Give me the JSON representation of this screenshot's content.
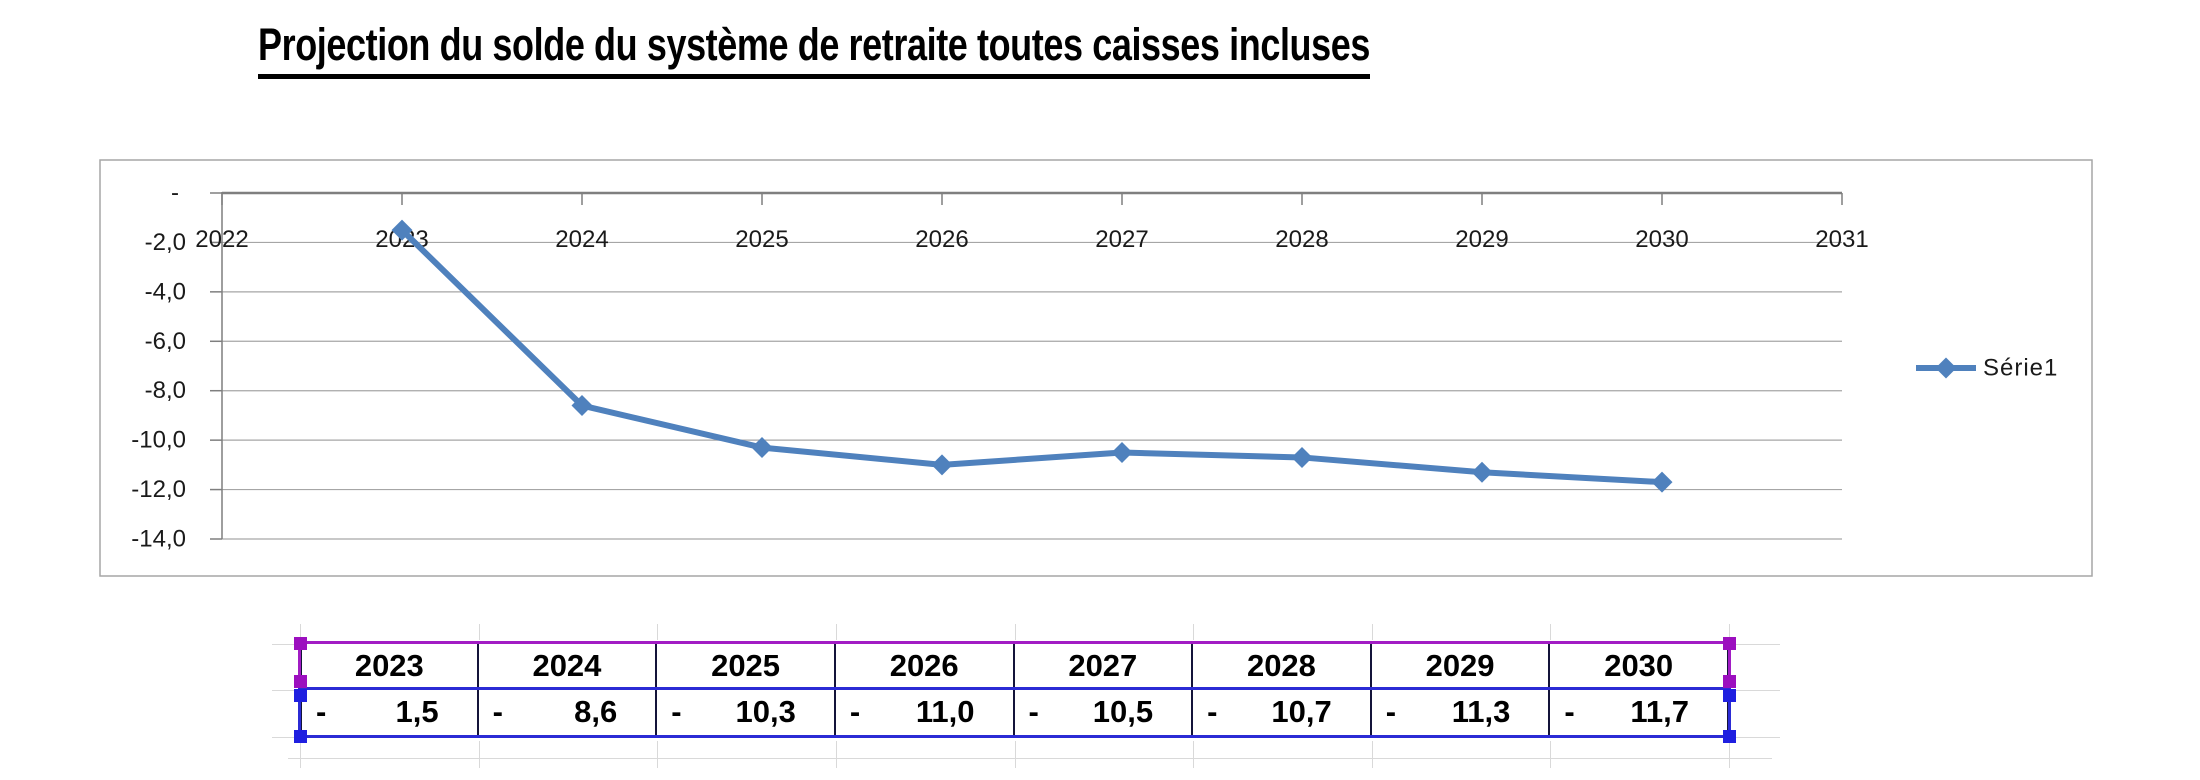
{
  "page_title": "Projection du solde du système de retraite toutes caisses incluses",
  "chart_data": {
    "type": "line",
    "title": "Projection du solde du système de retraite toutes caisses incluses",
    "xlabel": "",
    "ylabel": "",
    "x_categories": [
      "2022",
      "2023",
      "2024",
      "2025",
      "2026",
      "2027",
      "2028",
      "2029",
      "2030",
      "2031"
    ],
    "y_tick_labels": [
      "-",
      "-2,0",
      "-4,0",
      "-6,0",
      "-8,0",
      "-10,0",
      "-12,0",
      "-14,0"
    ],
    "ylim": [
      -14,
      0
    ],
    "grid": true,
    "legend_position": "right",
    "series": [
      {
        "name": "Série1",
        "color": "#4F81BD",
        "marker": "diamond",
        "x": [
          "2023",
          "2024",
          "2025",
          "2026",
          "2027",
          "2028",
          "2029",
          "2030"
        ],
        "values": [
          -1.5,
          -8.6,
          -10.3,
          -11.0,
          -10.5,
          -10.7,
          -11.3,
          -11.7
        ]
      }
    ],
    "colors": {
      "gridline": "#a6a6a6",
      "axis": "#7f7f7f",
      "chart_border": "#a6a6a6",
      "tick_label": "#1a1a1a"
    }
  },
  "data_table": {
    "header_row": [
      "2023",
      "2024",
      "2025",
      "2026",
      "2027",
      "2028",
      "2029",
      "2030"
    ],
    "negative_sign": "-",
    "values_display": [
      "1,5",
      "8,6",
      "10,3",
      "11,0",
      "10,5",
      "10,7",
      "11,3",
      "11,7"
    ],
    "selection": {
      "category_border_color": "#a21cc4",
      "value_border_color": "#2b2bd5",
      "category_handle_color": "#9c0fbf",
      "value_handle_color": "#1f1fe0"
    }
  }
}
